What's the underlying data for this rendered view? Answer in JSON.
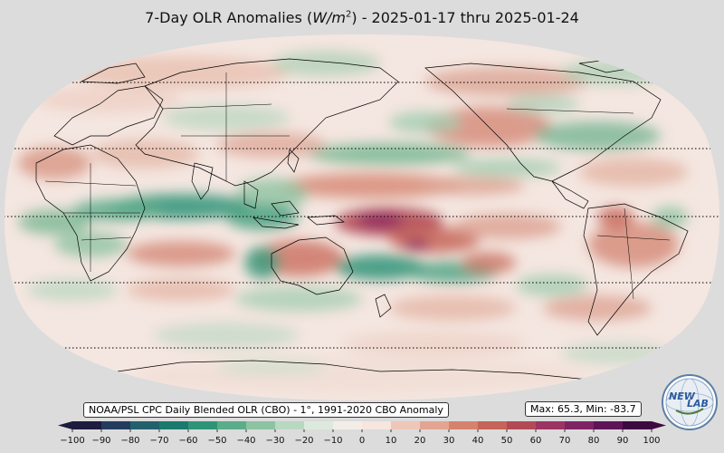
{
  "title": {
    "prefix": "7-Day OLR Anomalies (",
    "unit_main": "W/m",
    "unit_exp": "2",
    "suffix": ") - 2025-01-17 thru 2025-01-24"
  },
  "source_label": "NOAA/PSL CPC Daily Blended OLR (CBO) - 1°, 1991-2020 CBO Anomaly",
  "maxmin_label": "Max: 65.3,  Min: -83.7",
  "colorbar": {
    "ticks": [
      "−100",
      "−90",
      "−80",
      "−70",
      "−60",
      "−50",
      "−40",
      "−30",
      "−20",
      "−10",
      "0",
      "10",
      "20",
      "30",
      "40",
      "50",
      "60",
      "70",
      "80",
      "90",
      "100"
    ],
    "min": -100,
    "max": 100,
    "colors": [
      "#1d1b3e",
      "#233c5e",
      "#22616b",
      "#1a7a6e",
      "#2e9478",
      "#5aac8a",
      "#8cc3a2",
      "#b9d8c0",
      "#dce9dc",
      "#f3ede8",
      "#f6e6df",
      "#eec7b8",
      "#e3a592",
      "#d5836f",
      "#c56458",
      "#b24a55",
      "#9b3562",
      "#7e2364",
      "#5e1459",
      "#3c0a3f"
    ]
  },
  "map": {
    "projection": "Robinson",
    "central_longitude": 180,
    "graticule_latitudes": [
      -60,
      -30,
      0,
      30,
      60
    ],
    "colors": {
      "ocean_base": "#f4e6e0",
      "positive": "#cf7f6a",
      "positive_strong": "#8f2e63",
      "negative": "#5fae8a",
      "negative_strong": "#1d7a6e",
      "coastline": "#000000",
      "background": "#dcdcdc"
    }
  },
  "logo": {
    "text_a": "NEW",
    "text_b": "LAB"
  }
}
